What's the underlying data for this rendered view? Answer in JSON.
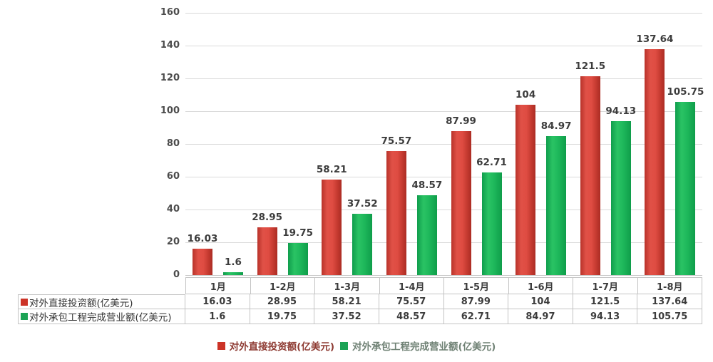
{
  "chart_data": {
    "type": "bar",
    "title": "",
    "xlabel": "",
    "ylabel": "",
    "categories": [
      "1月",
      "1-2月",
      "1-3月",
      "1-4月",
      "1-5月",
      "1-6月",
      "1-7月",
      "1-8月"
    ],
    "series": [
      {
        "name": "对外直接投资额(亿美元)",
        "values": [
          16.03,
          28.95,
          58.21,
          75.57,
          87.99,
          104,
          121.5,
          137.64
        ],
        "value_labels": [
          "16.03",
          "28.95",
          "58.21",
          "75.57",
          "87.99",
          "104",
          "121.5",
          "137.64"
        ],
        "color": "#cc3327",
        "legend_text_color": "#8e3b33"
      },
      {
        "name": "对外承包工程完成营业额(亿美元)",
        "values": [
          1.6,
          19.75,
          37.52,
          48.57,
          62.71,
          84.97,
          94.13,
          105.75
        ],
        "value_labels": [
          "1.6",
          "19.75",
          "37.52",
          "48.57",
          "62.71",
          "84.97",
          "94.13",
          "105.75"
        ],
        "color": "#1ca355",
        "legend_text_color": "#6f8174"
      }
    ],
    "ylim": [
      0,
      160
    ],
    "yticks": [
      0,
      20,
      40,
      60,
      80,
      100,
      120,
      140,
      160
    ],
    "grid": true,
    "legend_position": "bottom",
    "data_table_shown": true
  },
  "colors": {
    "background": "#ffffff",
    "gridline": "#dadada",
    "axis_text": "#4c4c4c",
    "value_text": "#3c3c3c",
    "table_border": "#c3c3c3",
    "series_red": "#cc3327",
    "series_green": "#1ca355"
  }
}
